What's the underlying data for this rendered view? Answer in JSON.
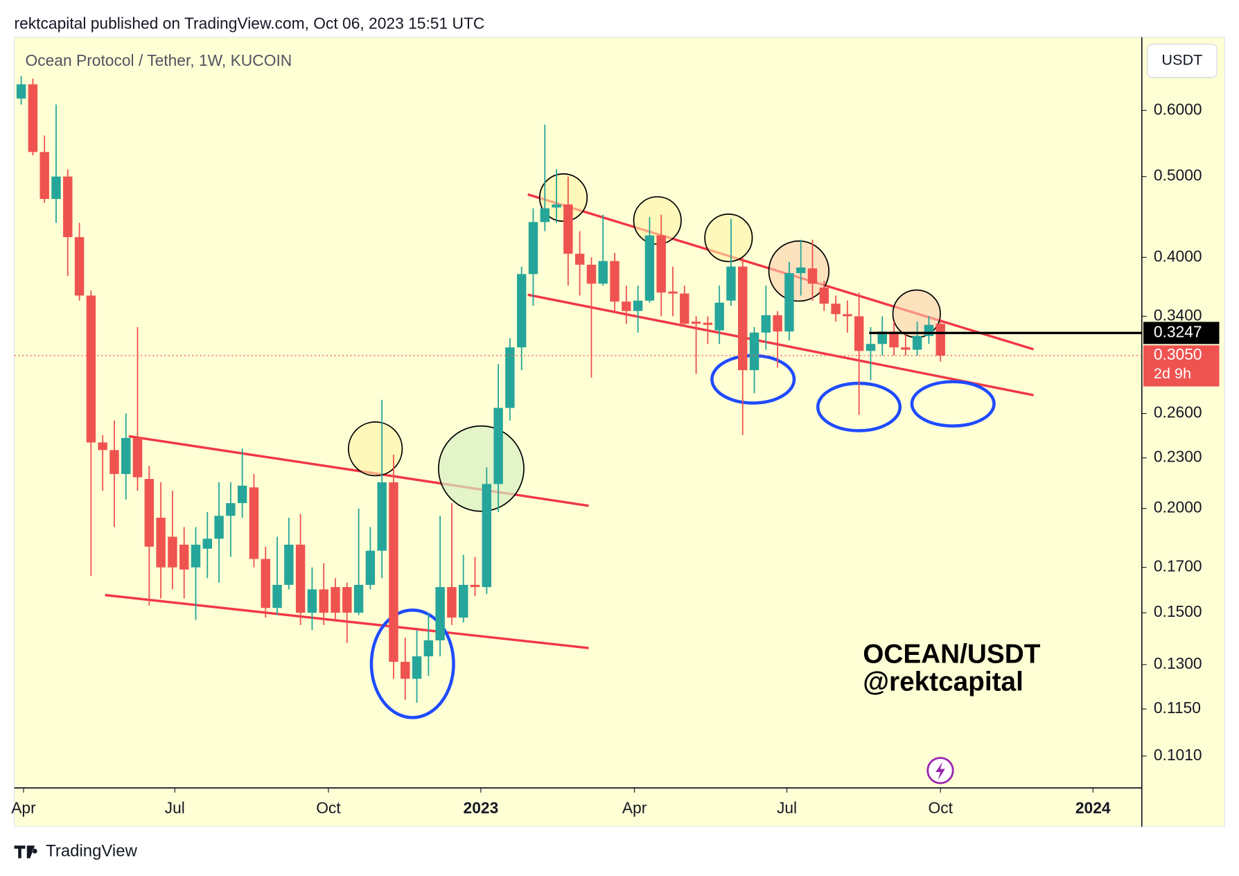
{
  "header": {
    "publisher": "rektcapital published on TradingView.com, Oct 06, 2023 15:51 UTC",
    "footer": "TradingView"
  },
  "chart_data": {
    "type": "candlestick",
    "title": "Ocean Protocol / Tether, 1W, KUCOIN",
    "currency": "USDT",
    "annotations": [
      "OCEAN/USDT",
      "@rektcapital"
    ],
    "log_scale": true,
    "grid": false,
    "up_color": "#26a69a",
    "down_color": "#ef5350",
    "open": [
      0.62,
      0.645,
      0.535,
      0.47,
      0.5,
      0.423,
      0.36,
      0.24,
      0.235,
      0.22,
      0.243,
      0.217,
      0.195,
      0.185,
      0.181,
      0.17,
      0.179,
      0.184,
      0.196,
      0.203,
      0.212,
      0.174,
      0.152,
      0.162,
      0.181,
      0.15,
      0.16,
      0.161,
      0.161,
      0.15,
      0.162,
      0.178,
      0.215,
      0.131,
      0.125,
      0.133,
      0.139,
      0.161,
      0.148,
      0.162,
      0.161,
      0.214,
      0.264,
      0.312,
      0.382,
      0.441,
      0.459,
      0.463,
      0.404,
      0.392,
      0.372,
      0.396,
      0.354,
      0.345,
      0.355,
      0.425,
      0.364,
      0.362,
      0.335,
      0.334,
      0.327,
      0.355,
      0.39,
      0.293,
      0.325,
      0.341,
      0.326,
      0.383,
      0.388,
      0.368,
      0.352,
      0.342,
      0.34,
      0.309,
      0.315,
      0.326,
      0.312,
      0.31,
      0.322,
      0.333
    ],
    "high": [
      0.66,
      0.655,
      0.56,
      0.61,
      0.51,
      0.44,
      0.365,
      0.245,
      0.255,
      0.26,
      0.33,
      0.225,
      0.215,
      0.21,
      0.19,
      0.19,
      0.198,
      0.215,
      0.215,
      0.236,
      0.22,
      0.18,
      0.185,
      0.195,
      0.197,
      0.17,
      0.172,
      0.165,
      0.163,
      0.2,
      0.19,
      0.27,
      0.232,
      0.14,
      0.143,
      0.15,
      0.196,
      0.203,
      0.176,
      0.175,
      0.224,
      0.298,
      0.32,
      0.39,
      0.458,
      0.577,
      0.51,
      0.5,
      0.43,
      0.4,
      0.45,
      0.405,
      0.37,
      0.37,
      0.447,
      0.45,
      0.39,
      0.37,
      0.34,
      0.34,
      0.37,
      0.445,
      0.4,
      0.33,
      0.37,
      0.345,
      0.395,
      0.42,
      0.42,
      0.375,
      0.36,
      0.355,
      0.363,
      0.33,
      0.34,
      0.335,
      0.325,
      0.335,
      0.34,
      0.338
    ],
    "low": [
      0.61,
      0.53,
      0.465,
      0.44,
      0.38,
      0.355,
      0.166,
      0.21,
      0.19,
      0.205,
      0.21,
      0.153,
      0.156,
      0.16,
      0.156,
      0.147,
      0.165,
      0.163,
      0.175,
      0.195,
      0.17,
      0.148,
      0.149,
      0.16,
      0.145,
      0.143,
      0.145,
      0.147,
      0.138,
      0.149,
      0.16,
      0.165,
      0.125,
      0.118,
      0.117,
      0.126,
      0.133,
      0.145,
      0.146,
      0.157,
      0.158,
      0.198,
      0.255,
      0.293,
      0.35,
      0.43,
      0.44,
      0.37,
      0.36,
      0.287,
      0.37,
      0.345,
      0.333,
      0.325,
      0.353,
      0.34,
      0.34,
      0.33,
      0.29,
      0.315,
      0.315,
      0.35,
      0.245,
      0.275,
      0.31,
      0.295,
      0.318,
      0.36,
      0.355,
      0.345,
      0.335,
      0.325,
      0.259,
      0.285,
      0.305,
      0.305,
      0.305,
      0.305,
      0.315,
      0.3
    ],
    "close": [
      0.645,
      0.535,
      0.47,
      0.5,
      0.423,
      0.36,
      0.24,
      0.235,
      0.22,
      0.243,
      0.218,
      0.18,
      0.17,
      0.17,
      0.169,
      0.181,
      0.184,
      0.196,
      0.203,
      0.213,
      0.174,
      0.152,
      0.162,
      0.181,
      0.15,
      0.16,
      0.15,
      0.15,
      0.15,
      0.162,
      0.178,
      0.215,
      0.131,
      0.125,
      0.133,
      0.139,
      0.161,
      0.148,
      0.162,
      0.161,
      0.214,
      0.264,
      0.312,
      0.382,
      0.441,
      0.458,
      0.463,
      0.404,
      0.392,
      0.372,
      0.396,
      0.354,
      0.345,
      0.355,
      0.425,
      0.363,
      0.362,
      0.333,
      0.333,
      0.332,
      0.353,
      0.39,
      0.293,
      0.325,
      0.341,
      0.326,
      0.383,
      0.389,
      0.372,
      0.352,
      0.342,
      0.34,
      0.309,
      0.315,
      0.326,
      0.312,
      0.31,
      0.322,
      0.332,
      0.305
    ],
    "xlim": [
      -0.6,
      96.3
    ],
    "xticks": [
      {
        "value": 0.2,
        "label": "Apr"
      },
      {
        "value": 13.2,
        "label": "Jul"
      },
      {
        "value": 26.4,
        "label": "Oct"
      },
      {
        "value": 39.5,
        "label": "2023"
      },
      {
        "value": 52.7,
        "label": "Apr"
      },
      {
        "value": 65.8,
        "label": "Jul"
      },
      {
        "value": 79.0,
        "label": "Oct"
      },
      {
        "value": 92.1,
        "label": "2024"
      }
    ],
    "ylim": [
      0.0925,
      0.733
    ],
    "yticks": [
      {
        "value": 0.6,
        "label": "0.6000"
      },
      {
        "value": 0.5,
        "label": "0.5000"
      },
      {
        "value": 0.4,
        "label": "0.4000"
      },
      {
        "value": 0.34,
        "label": "0.3400"
      },
      {
        "value": 0.26,
        "label": "0.2600"
      },
      {
        "value": 0.23,
        "label": "0.2300"
      },
      {
        "value": 0.2,
        "label": "0.2000"
      },
      {
        "value": 0.17,
        "label": "0.1700"
      },
      {
        "value": 0.15,
        "label": "0.1500"
      },
      {
        "value": 0.13,
        "label": "0.1300"
      },
      {
        "value": 0.115,
        "label": "0.1150"
      },
      {
        "value": 0.101,
        "label": "0.1010"
      }
    ],
    "price_lines": [
      {
        "value": 0.3247,
        "label": "0.3247",
        "color": "#000000"
      },
      {
        "value": 0.305,
        "label": "0.3050",
        "color": "#ef5350",
        "countdown": "2d 9h"
      }
    ]
  }
}
